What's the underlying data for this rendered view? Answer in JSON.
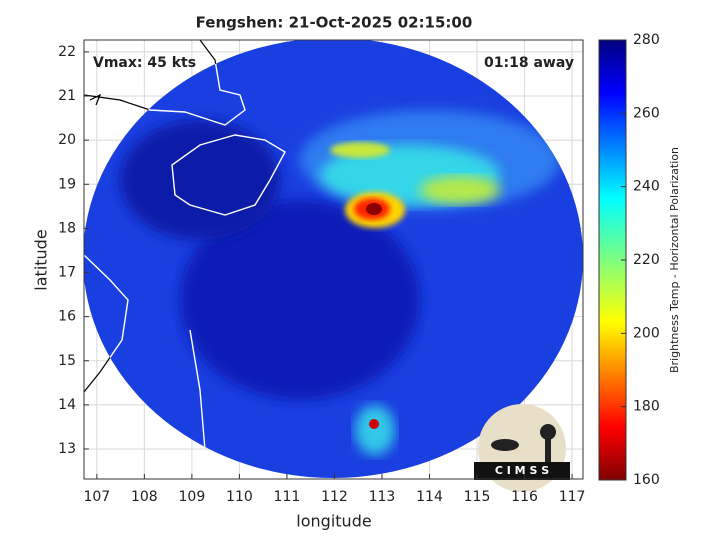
{
  "chart_data": {
    "type": "map",
    "title": "Fengshen: 21-Oct-2025 02:15:00",
    "xlabel": "longitude",
    "ylabel": "latitude",
    "xlim": [
      106.73,
      117.23
    ],
    "ylim": [
      12.32,
      22.27
    ],
    "xticks": [
      107,
      108,
      109,
      110,
      111,
      112,
      113,
      114,
      115,
      116,
      117
    ],
    "yticks": [
      13,
      14,
      15,
      16,
      17,
      18,
      19,
      20,
      21,
      22
    ],
    "grid": true,
    "colorbar": {
      "label": "Brightness Temp - Horizontal Polarization",
      "lim": [
        160,
        280
      ],
      "ticks": [
        160,
        180,
        200,
        220,
        240,
        260,
        280
      ]
    },
    "annotations": [
      "Vmax: 45 kts",
      "01:18 away"
    ],
    "logo": "C I M S S"
  }
}
